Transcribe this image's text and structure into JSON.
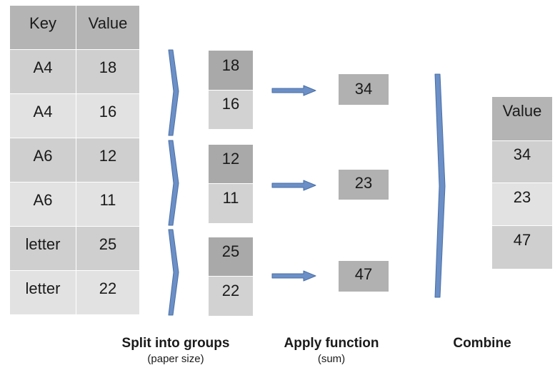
{
  "input_table": {
    "headers": [
      "Key",
      "Value"
    ],
    "rows": [
      [
        "A4",
        "18"
      ],
      [
        "A4",
        "16"
      ],
      [
        "A6",
        "12"
      ],
      [
        "A6",
        "11"
      ],
      [
        "letter",
        "25"
      ],
      [
        "letter",
        "22"
      ]
    ]
  },
  "groups": [
    [
      "18",
      "16"
    ],
    [
      "12",
      "11"
    ],
    [
      "25",
      "22"
    ]
  ],
  "applied": [
    "34",
    "23",
    "47"
  ],
  "output_table": {
    "header": "Value",
    "values": [
      "34",
      "23",
      "47"
    ]
  },
  "captions": {
    "split": "Split into groups",
    "split_sub": "(paper size)",
    "apply": "Apply function",
    "apply_sub": "(sum)",
    "combine": "Combine"
  },
  "colors": {
    "arrow": "#6b8fc6",
    "arrow_outline": "#4a6fa5"
  }
}
